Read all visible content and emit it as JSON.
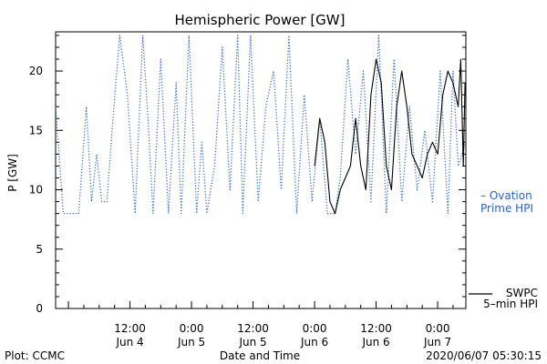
{
  "chart_data": {
    "type": "line",
    "title": "Hemispheric Power [GW]",
    "ylabel": "P [GW]",
    "xlabel": "Date and Time",
    "ylim": [
      0,
      23.3
    ],
    "xlim": [
      "2020-06-03T21:30",
      "2020-06-07T05:30"
    ],
    "grid": false,
    "y_ticks": [
      0,
      5,
      10,
      15,
      20
    ],
    "y_tick_labels": [
      "0",
      "5",
      "10",
      "15",
      "20"
    ],
    "x_ticks": [
      {
        "t": "2020-06-04T12:00",
        "time": "12:00",
        "day": "Jun 4"
      },
      {
        "t": "2020-06-05T00:00",
        "time": "0:00",
        "day": "Jun 5"
      },
      {
        "t": "2020-06-05T12:00",
        "time": "12:00",
        "day": "Jun 5"
      },
      {
        "t": "2020-06-06T00:00",
        "time": "0:00",
        "day": "Jun 6"
      },
      {
        "t": "2020-06-06T12:00",
        "time": "12:00",
        "day": "Jun 6"
      },
      {
        "t": "2020-06-07T00:00",
        "time": "0:00",
        "day": "Jun 7"
      }
    ],
    "legend_placement": "right",
    "series": [
      {
        "name": "Ovation Prime HPI",
        "legend_text": "– Ovation",
        "legend_text2": "Prime HPI",
        "color": "#2b63c9",
        "style": "dotted",
        "x": [
          "2020-06-03T21:30",
          "2020-06-03T23:00",
          "2020-06-04T00:30",
          "2020-06-04T02:00",
          "2020-06-04T03:30",
          "2020-06-04T04:30",
          "2020-06-04T05:30",
          "2020-06-04T06:30",
          "2020-06-04T07:30",
          "2020-06-04T08:30",
          "2020-06-04T10:00",
          "2020-06-04T11:30",
          "2020-06-04T13:00",
          "2020-06-04T14:30",
          "2020-06-04T15:30",
          "2020-06-04T16:30",
          "2020-06-04T18:00",
          "2020-06-04T19:30",
          "2020-06-04T21:00",
          "2020-06-04T22:00",
          "2020-06-04T23:30",
          "2020-06-05T01:00",
          "2020-06-05T02:00",
          "2020-06-05T03:00",
          "2020-06-05T04:30",
          "2020-06-05T06:00",
          "2020-06-05T07:30",
          "2020-06-05T09:00",
          "2020-06-05T10:00",
          "2020-06-05T11:30",
          "2020-06-05T13:00",
          "2020-06-05T14:30",
          "2020-06-05T16:00",
          "2020-06-05T17:30",
          "2020-06-05T19:00",
          "2020-06-05T20:30",
          "2020-06-05T22:00",
          "2020-06-05T23:30",
          "2020-06-06T01:00",
          "2020-06-06T02:30",
          "2020-06-06T04:00",
          "2020-06-06T05:00",
          "2020-06-06T06:30",
          "2020-06-06T08:00",
          "2020-06-06T09:30",
          "2020-06-06T11:00",
          "2020-06-06T12:30",
          "2020-06-06T14:00",
          "2020-06-06T15:30",
          "2020-06-06T17:00",
          "2020-06-06T18:30",
          "2020-06-06T20:00",
          "2020-06-06T21:30",
          "2020-06-06T23:00",
          "2020-06-07T00:30",
          "2020-06-07T02:00",
          "2020-06-07T03:00",
          "2020-06-07T04:00",
          "2020-06-07T05:30"
        ],
        "y": [
          17,
          8,
          8,
          8,
          17,
          9,
          13,
          9,
          9,
          15,
          23,
          18,
          8,
          23,
          16,
          8,
          21,
          8,
          19,
          8,
          23,
          8,
          14,
          8,
          12,
          22,
          10,
          23,
          8,
          23,
          9,
          17,
          20,
          10,
          23,
          8,
          18,
          9,
          16,
          8,
          8,
          11,
          21,
          13,
          20,
          9,
          23,
          8,
          21,
          9,
          17,
          10,
          15,
          9,
          20,
          8,
          20,
          12,
          14
        ]
      },
      {
        "name": "SWPC 5-min HPI",
        "legend_text": "SWPC",
        "legend_text2": "5–min HPI",
        "color": "#000000",
        "style": "solid",
        "x": [
          "2020-06-06T00:00",
          "2020-06-06T01:00",
          "2020-06-06T02:00",
          "2020-06-06T03:00",
          "2020-06-06T04:00",
          "2020-06-06T05:00",
          "2020-06-06T06:00",
          "2020-06-06T07:00",
          "2020-06-06T08:00",
          "2020-06-06T09:00",
          "2020-06-06T10:00",
          "2020-06-06T11:00",
          "2020-06-06T12:00",
          "2020-06-06T13:00",
          "2020-06-06T14:00",
          "2020-06-06T15:00",
          "2020-06-06T16:00",
          "2020-06-06T17:00",
          "2020-06-06T18:00",
          "2020-06-06T19:00",
          "2020-06-06T20:00",
          "2020-06-06T21:00",
          "2020-06-06T22:00",
          "2020-06-06T23:00",
          "2020-06-07T00:00",
          "2020-06-07T01:00",
          "2020-06-07T02:00",
          "2020-06-07T03:00",
          "2020-06-07T04:00",
          "2020-06-07T04:30",
          "2020-06-07T05:00",
          "2020-06-07T05:20"
        ],
        "y": [
          12,
          16,
          14,
          9,
          8,
          10,
          11,
          12,
          16,
          12,
          10,
          18,
          21,
          19,
          12,
          10,
          17,
          20,
          17,
          13,
          12,
          11,
          13,
          14,
          13,
          18,
          20,
          19,
          17,
          21,
          12,
          19
        ]
      }
    ]
  },
  "footer": {
    "left": "Plot: CCMC",
    "right": "2020/06/07 05:30:15"
  }
}
